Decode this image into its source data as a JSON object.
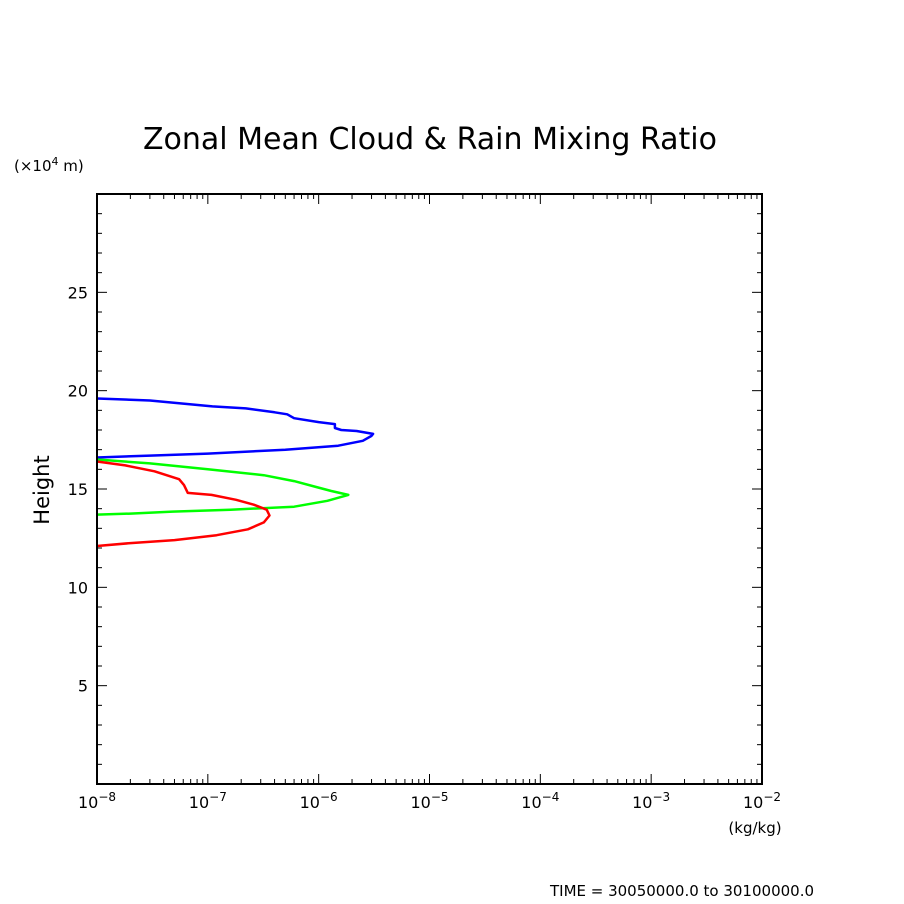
{
  "chart_data": {
    "type": "line",
    "title": "Zonal Mean Cloud & Rain Mixing Ratio",
    "y_unit_label": {
      "prefix": "(×10",
      "exp": "4",
      "suffix": " m)"
    },
    "ylabel": "Height",
    "xlabel": "(kg/kg)",
    "footer": "TIME = 30050000.0 to 30100000.0",
    "x_scale": "log",
    "xlim": [
      1e-08,
      0.01
    ],
    "ylim": [
      0,
      30
    ],
    "x_ticks": [
      {
        "base": "10",
        "exp": "−8"
      },
      {
        "base": "10",
        "exp": "−7"
      },
      {
        "base": "10",
        "exp": "−6"
      },
      {
        "base": "10",
        "exp": "−5"
      },
      {
        "base": "10",
        "exp": "−4"
      },
      {
        "base": "10",
        "exp": "−3"
      },
      {
        "base": "10",
        "exp": "−2"
      }
    ],
    "y_ticks": [
      "5",
      "10",
      "15",
      "20",
      "25"
    ],
    "grid": false,
    "series": [
      {
        "color": "#0000ff",
        "x": [
          1e-08,
          3e-08,
          1.1e-07,
          2.2e-07,
          4e-07,
          5.2e-07,
          6e-07,
          1e-06,
          1.4e-06,
          1.4e-06,
          1.6e-06,
          2.2e-06,
          3.1e-06,
          3e-06,
          2.5e-06,
          1.5e-06,
          5e-07,
          1e-07,
          3e-08,
          1e-08
        ],
        "y": [
          19.6,
          19.5,
          19.2,
          19.1,
          18.9,
          18.8,
          18.6,
          18.4,
          18.3,
          18.1,
          18.0,
          17.95,
          17.8,
          17.7,
          17.45,
          17.2,
          17.0,
          16.8,
          16.7,
          16.6
        ]
      },
      {
        "color": "#00ff00",
        "x": [
          1e-08,
          3e-08,
          1e-07,
          3.2e-07,
          6e-07,
          9.5e-07,
          1.3e-06,
          1.85e-06,
          1.2e-06,
          6e-07,
          1.6e-07,
          4.8e-08,
          2e-08,
          1e-08
        ],
        "y": [
          16.5,
          16.3,
          16.0,
          15.7,
          15.4,
          15.1,
          14.9,
          14.7,
          14.4,
          14.1,
          13.95,
          13.85,
          13.75,
          13.7
        ]
      },
      {
        "color": "#ff0000",
        "x": [
          1e-08,
          1.8e-08,
          3.3e-08,
          5.5e-08,
          6.1e-08,
          6.6e-08,
          1.08e-07,
          1.8e-07,
          2.6e-07,
          3.4e-07,
          3.6e-07,
          3.2e-07,
          2.3e-07,
          1.2e-07,
          5e-08,
          2e-08,
          1e-08
        ],
        "y": [
          16.4,
          16.2,
          15.9,
          15.5,
          15.2,
          14.8,
          14.7,
          14.45,
          14.2,
          13.95,
          13.65,
          13.3,
          12.95,
          12.65,
          12.4,
          12.25,
          12.1
        ]
      }
    ]
  }
}
